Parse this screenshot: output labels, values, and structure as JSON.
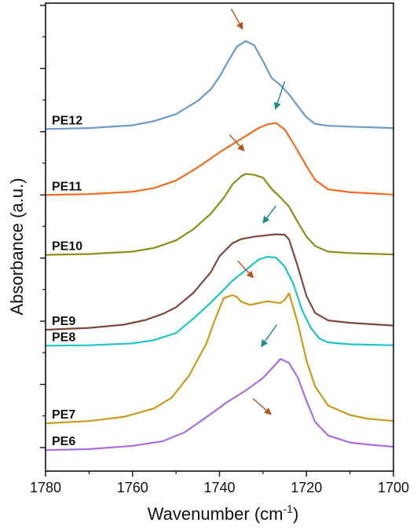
{
  "chart_data": {
    "type": "line",
    "xlabel": "Wavenumber (cm",
    "xlabel_sup": "-1",
    "xlabel_close": ")",
    "ylabel": "Absorbance (a.u.)",
    "xlim": [
      1780,
      1700
    ],
    "x_ticks": [
      1780,
      1760,
      1740,
      1720,
      1700
    ],
    "x_tick_labels": [
      "1780",
      "1760",
      "1740",
      "1720",
      "1700"
    ],
    "y_axis_numbers": "hidden",
    "y_range": [
      0,
      100
    ],
    "grid": false,
    "legend": "none",
    "series": [
      {
        "name": "PE12",
        "color": "#6b9ac8",
        "points": [
          [
            1780,
            73.1
          ],
          [
            1770,
            73.3
          ],
          [
            1760,
            73.9
          ],
          [
            1755,
            74.8
          ],
          [
            1750,
            76.3
          ],
          [
            1745,
            79.1
          ],
          [
            1742,
            81.6
          ],
          [
            1740,
            84.3
          ],
          [
            1738,
            87.6
          ],
          [
            1736,
            90.7
          ],
          [
            1734,
            91.9
          ],
          [
            1732,
            91.0
          ],
          [
            1730,
            87.6
          ],
          [
            1728,
            84.0
          ],
          [
            1726,
            82.5
          ],
          [
            1724,
            80.5
          ],
          [
            1722,
            78.0
          ],
          [
            1720,
            75.6
          ],
          [
            1718,
            74.2
          ],
          [
            1715,
            73.8
          ],
          [
            1710,
            73.6
          ],
          [
            1700,
            73.3
          ]
        ]
      },
      {
        "name": "PE11",
        "color": "#f26b1d",
        "points": [
          [
            1780,
            59.0
          ],
          [
            1770,
            59.2
          ],
          [
            1760,
            59.7
          ],
          [
            1755,
            60.5
          ],
          [
            1750,
            62.1
          ],
          [
            1745,
            64.9
          ],
          [
            1740,
            68.1
          ],
          [
            1735,
            71.0
          ],
          [
            1731,
            73.3
          ],
          [
            1729,
            74.1
          ],
          [
            1727,
            74.4
          ],
          [
            1725,
            73.0
          ],
          [
            1723,
            70.0
          ],
          [
            1720,
            65.2
          ],
          [
            1718,
            62.2
          ],
          [
            1715,
            60.2
          ],
          [
            1710,
            59.6
          ],
          [
            1700,
            59.1
          ]
        ]
      },
      {
        "name": "PE10",
        "color": "#8c8c1a",
        "points": [
          [
            1780,
            46.2
          ],
          [
            1770,
            46.4
          ],
          [
            1760,
            46.9
          ],
          [
            1755,
            47.7
          ],
          [
            1750,
            49.3
          ],
          [
            1746,
            51.7
          ],
          [
            1742,
            55.0
          ],
          [
            1739,
            58.4
          ],
          [
            1737,
            61.3
          ],
          [
            1735,
            63.0
          ],
          [
            1734,
            63.5
          ],
          [
            1732,
            63.3
          ],
          [
            1730,
            62.7
          ],
          [
            1728,
            60.3
          ],
          [
            1726,
            58.5
          ],
          [
            1724,
            56.5
          ],
          [
            1722,
            53.2
          ],
          [
            1720,
            50.1
          ],
          [
            1718,
            48.1
          ],
          [
            1715,
            46.9
          ],
          [
            1710,
            46.6
          ],
          [
            1700,
            46.3
          ]
        ]
      },
      {
        "name": "PE9",
        "color": "#7a4a42",
        "points": [
          [
            1780,
            30.2
          ],
          [
            1770,
            30.6
          ],
          [
            1762,
            31.3
          ],
          [
            1757,
            32.3
          ],
          [
            1753,
            33.6
          ],
          [
            1750,
            35.0
          ],
          [
            1746,
            38.1
          ],
          [
            1742,
            42.5
          ],
          [
            1740,
            45.9
          ],
          [
            1737,
            48.7
          ],
          [
            1735,
            49.6
          ],
          [
            1732,
            50.1
          ],
          [
            1730,
            50.3
          ],
          [
            1727,
            50.6
          ],
          [
            1725,
            50.5
          ],
          [
            1724,
            49.5
          ],
          [
            1722,
            43.7
          ],
          [
            1720,
            37.4
          ],
          [
            1718,
            33.8
          ],
          [
            1715,
            32.2
          ],
          [
            1710,
            31.7
          ],
          [
            1700,
            31.1
          ]
        ]
      },
      {
        "name": "PE8",
        "color": "#1fc4c4",
        "points": [
          [
            1780,
            26.8
          ],
          [
            1770,
            26.9
          ],
          [
            1760,
            27.3
          ],
          [
            1755,
            28.0
          ],
          [
            1750,
            29.5
          ],
          [
            1746,
            32.6
          ],
          [
            1742,
            36.0
          ],
          [
            1739,
            38.8
          ],
          [
            1737,
            40.7
          ],
          [
            1735,
            42.2
          ],
          [
            1733,
            43.7
          ],
          [
            1731,
            45.2
          ],
          [
            1729,
            45.8
          ],
          [
            1727,
            45.6
          ],
          [
            1725,
            43.7
          ],
          [
            1723,
            40.0
          ],
          [
            1721,
            34.4
          ],
          [
            1719,
            30.6
          ],
          [
            1717,
            28.3
          ],
          [
            1715,
            27.5
          ],
          [
            1710,
            27.1
          ],
          [
            1700,
            26.9
          ]
        ]
      },
      {
        "name": "PE7",
        "color": "#c89b1c",
        "points": [
          [
            1780,
            10.2
          ],
          [
            1770,
            10.7
          ],
          [
            1762,
            11.6
          ],
          [
            1755,
            13.4
          ],
          [
            1751,
            15.7
          ],
          [
            1747,
            20.4
          ],
          [
            1743,
            27.3
          ],
          [
            1741,
            32.5
          ],
          [
            1739,
            37.0
          ],
          [
            1737,
            37.6
          ],
          [
            1736,
            37.2
          ],
          [
            1735,
            36.2
          ],
          [
            1733,
            35.5
          ],
          [
            1731,
            35.9
          ],
          [
            1729,
            36.3
          ],
          [
            1726,
            35.9
          ],
          [
            1725,
            36.6
          ],
          [
            1724,
            38.0
          ],
          [
            1722,
            31.6
          ],
          [
            1720,
            23.6
          ],
          [
            1718,
            18.1
          ],
          [
            1715,
            14.0
          ],
          [
            1710,
            12.0
          ],
          [
            1706,
            11.2
          ],
          [
            1700,
            10.7
          ]
        ]
      },
      {
        "name": "PE6",
        "color": "#a86de0",
        "points": [
          [
            1780,
            4.5
          ],
          [
            1770,
            4.7
          ],
          [
            1760,
            5.4
          ],
          [
            1753,
            6.4
          ],
          [
            1748,
            8.3
          ],
          [
            1742,
            12.2
          ],
          [
            1738,
            14.9
          ],
          [
            1734,
            17.2
          ],
          [
            1730,
            19.9
          ],
          [
            1727,
            22.9
          ],
          [
            1726,
            24.0
          ],
          [
            1724,
            23.1
          ],
          [
            1722,
            20.0
          ],
          [
            1720,
            15.0
          ],
          [
            1718,
            10.5
          ],
          [
            1715,
            7.6
          ],
          [
            1710,
            6.1
          ],
          [
            1705,
            5.6
          ],
          [
            1700,
            5.2
          ]
        ]
      }
    ],
    "arrows": [
      {
        "color": "#b5531f",
        "from": [
          1737.3,
          98.8
        ],
        "to": [
          1734.6,
          94.3
        ]
      },
      {
        "color": "#1a8a8a",
        "from": [
          1725.0,
          83.3
        ],
        "to": [
          1727.2,
          77.2
        ]
      },
      {
        "color": "#b5531f",
        "from": [
          1737.7,
          71.9
        ],
        "to": [
          1734.2,
          68.3
        ]
      },
      {
        "color": "#1a8a8a",
        "from": [
          1727.0,
          56.7
        ],
        "to": [
          1730.1,
          52.9
        ]
      },
      {
        "color": "#b5531f",
        "from": [
          1735.8,
          44.9
        ],
        "to": [
          1732.1,
          41.2
        ]
      },
      {
        "color": "#1a8a8a",
        "from": [
          1726.8,
          31.3
        ],
        "to": [
          1730.5,
          26.5
        ]
      },
      {
        "color": "#b5531f",
        "from": [
          1732.3,
          15.5
        ],
        "to": [
          1728.0,
          12.0
        ]
      }
    ]
  }
}
